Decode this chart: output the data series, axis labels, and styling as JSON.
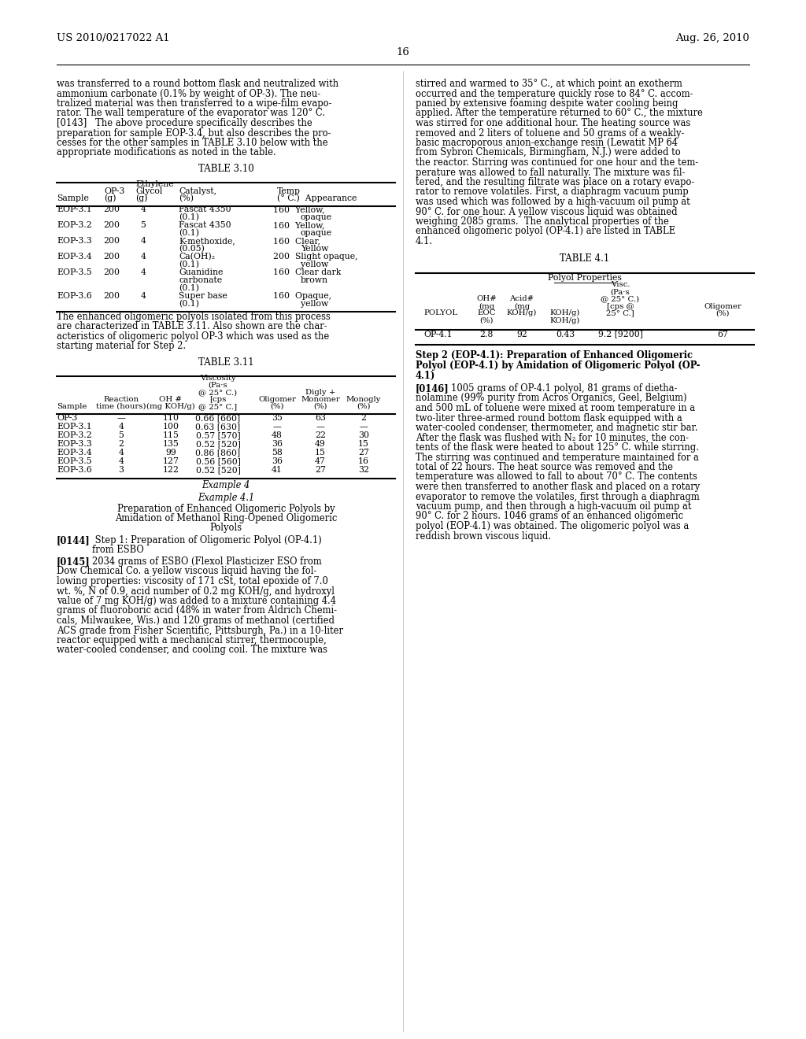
{
  "header_left": "US 2010/0217022 A1",
  "header_right": "Aug. 26, 2010",
  "page_number": "16",
  "background_color": "#ffffff",
  "text_color": "#000000",
  "font_size_body": 8.5,
  "font_size_header": 10,
  "font_size_table_title": 9.5,
  "font_size_table": 8.0,
  "left_col_text": [
    "was transferred to a round bottom flask and neutralized with",
    "ammonium carbonate (0.1% by weight of OP-3). The neu-",
    "tralized material was then transferred to a wipe-film evapo-",
    "rator. The wall temperature of the evaporator was 120° C.",
    "[0143]   The above procedure specifically describes the",
    "preparation for sample EOP-3.4, but also describes the pro-",
    "cesses for the other samples in TABLE 3.10 below with the",
    "appropriate modifications as noted in the table."
  ],
  "right_col_text_1": [
    "stirred and warmed to 35° C., at which point an exotherm",
    "occurred and the temperature quickly rose to 84° C. accom-",
    "panied by extensive foaming despite water cooling being",
    "applied. After the temperature returned to 60° C., the mixture",
    "was stirred for one additional hour. The heating source was",
    "removed and 2 liters of toluene and 50 grams of a weakly-",
    "basic macroporous anion-exchange resin (Lewatit MP 64",
    "from Sybron Chemicals, Birmingham, N.J.) were added to",
    "the reactor. Stirring was continued for one hour and the tem-",
    "perature was allowed to fall naturally. The mixture was fil-",
    "tered, and the resulting filtrate was place on a rotary evapo-",
    "rator to remove volatiles. First, a diaphragm vacuum pump",
    "was used which was followed by a high-vacuum oil pump at",
    "90° C. for one hour. A yellow viscous liquid was obtained",
    "weighing 2085 grams.  The analytical properties of the",
    "enhanced oligomeric polyol (OP-4.1) are listed in TABLE",
    "4.1."
  ],
  "table310_title": "TABLE 3.10",
  "table310_headers": [
    "",
    "OP-3",
    "Ethylene\nGlycol",
    "Catalyst,",
    "Temp"
  ],
  "table310_subheaders": [
    "Sample",
    "(g)",
    "(g)",
    "(%)",
    "(° C.)  Appearance"
  ],
  "table310_rows": [
    [
      "EOP-3.1",
      "200",
      "4",
      "Fascat 4350\n(0.1)",
      "160  Yellow,\n       opaque"
    ],
    [
      "EOP-3.2",
      "200",
      "5",
      "Fascat 4350\n(0.1)",
      "160  Yellow,\n       opaque"
    ],
    [
      "EOP-3.3",
      "200",
      "4",
      "K-methoxide,\n(0.05)",
      "160  Clear,\n       Yellow"
    ],
    [
      "EOP-3.4",
      "200",
      "4",
      "Ca(OH)₂\n(0.1)",
      "200  Slight opaque,\n       yellow"
    ],
    [
      "EOP-3.5",
      "200",
      "4",
      "Guanidine\ncarbonate\n(0.1)",
      "160  Clear dark\n       brown"
    ],
    [
      "EOP-3.6",
      "200",
      "4",
      "Super base\n(0.1)",
      "160  Opaque,\n       yellow"
    ]
  ],
  "left_mid_text": [
    "The enhanced oligomeric polyols isolated from this process",
    "are characterized in TABLE 3.11. Also shown are the char-",
    "acteristics of oligomeric polyol OP-3 which was used as the",
    "starting material for Step 2."
  ],
  "table41_title": "TABLE 4.1",
  "table41_subtitle": "Polyol Properties",
  "table41_col1_header": "POLYOL",
  "table41_col2_header": "EOC\n(%)",
  "table41_col3_header": "OH#\n(mg\nKOH/g)",
  "table41_col4_header": "Acid#\n(mg\nKOH/g)",
  "table41_col5_header": "Visc.\n(Pa·s\n@ 25° C.)\n[cps @\n25° C.]",
  "table41_col6_header": "Oligomer\n(%)",
  "table41_data": [
    [
      "OP-4.1",
      "2.8",
      "92",
      "0.43",
      "9.2 [9200]",
      "67"
    ]
  ],
  "table311_title": "TABLE 3.11",
  "table311_col1_header": "Sample",
  "table311_col2_header": "Reaction\ntime (hours)",
  "table311_col3_header": "OH #\n(mg KOH/g)",
  "table311_col4_header": "Viscosity\n(Pa·s\n@ 25° C.)\n[cps\n@ 25° C.]",
  "table311_col5_header": "Oligomer\n(%)",
  "table311_col6_header": "Monomer\n(%)",
  "table311_col7_header": "Digly +\nMonogly\n(%)",
  "table311_rows": [
    [
      "OP-3",
      "—",
      "110",
      "0.66 [660]",
      "35",
      "63",
      "2"
    ],
    [
      "EOP-3.1",
      "4",
      "100",
      "0.63 [630]",
      "—",
      "—",
      "—"
    ],
    [
      "EOP-3.2",
      "5",
      "115",
      "0.57 [570]",
      "48",
      "22",
      "30"
    ],
    [
      "EOP-3.3",
      "2",
      "135",
      "0.52 [520]",
      "36",
      "49",
      "15"
    ],
    [
      "EOP-3.4",
      "4",
      "99",
      "0.86 [860]",
      "58",
      "15",
      "27"
    ],
    [
      "EOP-3.5",
      "4",
      "127",
      "0.56 [560]",
      "36",
      "47",
      "16"
    ],
    [
      "EOP-3.6",
      "3",
      "122",
      "0.52 [520]",
      "41",
      "27",
      "32"
    ]
  ],
  "example4_title": "Example 4",
  "example41_title": "Example 4.1",
  "example41_subtitle": "Preparation of Enhanced Oligomeric Polyols by\nAmidation of Methanol Ring-Opened Oligomeric\nPolyols",
  "para144": "[0144]   Step 1: Preparation of Oligomeric Polyol (OP-4.1)\nfrom ESBO",
  "para145_lines": [
    "[0145]   2034 grams of ESBO (Flexol Plasticizer ESO from",
    "Dow Chemical Co. a yellow viscous liquid having the fol-",
    "lowing properties: viscosity of 171 cSt, total epoxide of 7.0",
    "wt. %, N of 0.9, acid number of 0.2 mg KOH/g, and hydroxyl",
    "value of 7 mg KOH/g) was added to a mixture containing 4.4",
    "grams of fluoroboric acid (48% in water from Aldrich Chemi-",
    "cals, Milwaukee, Wis.) and 120 grams of methanol (certified",
    "ACS grade from Fisher Scientific, Pittsburgh, Pa.) in a 10-liter",
    "reactor equipped with a mechanical stirrer, thermocouple,",
    "water-cooled condenser, and cooling coil. The mixture was"
  ],
  "right_step2_title": "Step 2 (EOP-4.1): Preparation of Enhanced Oligomeric\nPolyol (EOP-4.1) by Amidation of Oligomeric Polyol (OP-\n4.1)",
  "para146_lines": [
    "[0146]   1005 grams of OP-4.1 polyol, 81 grams of dietha-",
    "nolamine (99% purity from Acros Organics, Geel, Belgium)",
    "and 500 mL of toluene were mixed at room temperature in a",
    "two-liter three-armed round bottom flask equipped with a",
    "water-cooled condenser, thermometer, and magnetic stir bar.",
    "After the flask was flushed with N₂ for 10 minutes, the con-",
    "tents of the flask were heated to about 125° C. while stirring.",
    "The stirring was continued and temperature maintained for a",
    "total of 22 hours. The heat source was removed and the",
    "temperature was allowed to fall to about 70° C. The contents",
    "were then transferred to another flask and placed on a rotary",
    "evaporator to remove the volatiles, first through a diaphragm",
    "vacuum pump, and then through a high-vacuum oil pump at",
    "90° C. for 2 hours. 1046 grams of an enhanced oligomeric",
    "polyol (EOP-4.1) was obtained. The oligomeric polyol was a",
    "reddish brown viscous liquid."
  ]
}
